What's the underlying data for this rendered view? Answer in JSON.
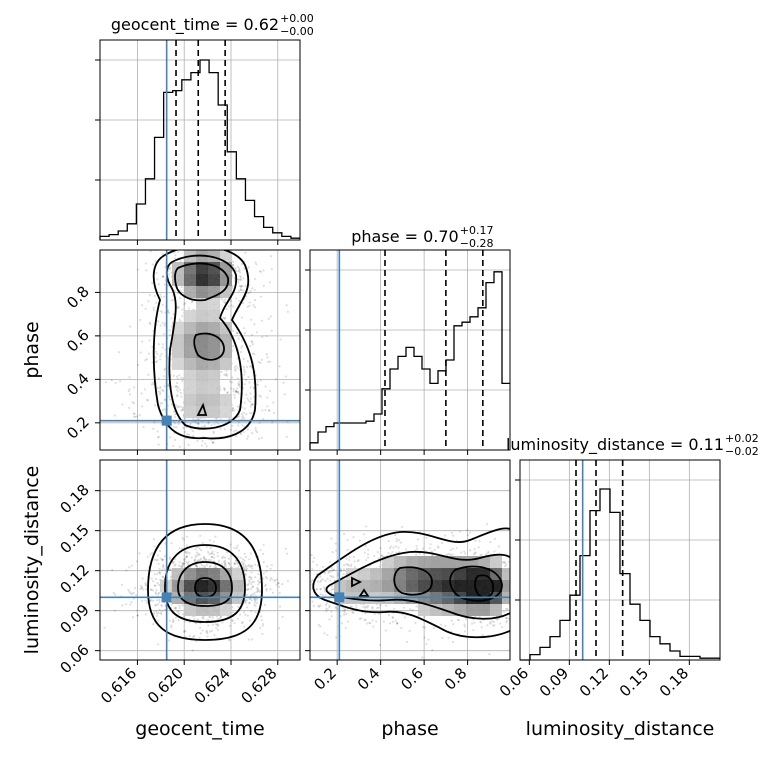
{
  "chart_data": {
    "type": "corner",
    "parameters": [
      "geocent_time",
      "phase",
      "luminosity_distance"
    ],
    "truths": {
      "geocent_time": 0.6185,
      "phase": 0.21,
      "luminosity_distance": 0.1
    },
    "truth_color": "#4682b4",
    "ranges": {
      "geocent_time": [
        0.6128,
        0.6299
      ],
      "phase": [
        0.075,
        0.995
      ],
      "luminosity_distance": [
        0.053,
        0.203
      ]
    },
    "titles": [
      {
        "param": "geocent_time",
        "prefix": "geocent_time = 0.62",
        "plus": "+0.00",
        "minus": "−0.00"
      },
      {
        "param": "phase",
        "prefix": "phase = 0.70",
        "plus": "+0.17",
        "minus": "−0.28"
      },
      {
        "param": "luminosity_distance",
        "prefix": "luminosity_distance = 0.11",
        "plus": "+0.02",
        "minus": "−0.02"
      }
    ],
    "xlabels": [
      "geocent_time",
      "phase",
      "luminosity_distance"
    ],
    "ylabels": [
      {
        "row": 1,
        "text": "phase"
      },
      {
        "row": 2,
        "text": "luminosity_distance"
      }
    ],
    "ticks": {
      "geocent_time": [
        "0.616",
        "0.620",
        "0.624",
        "0.628"
      ],
      "phase": [
        "0.2",
        "0.4",
        "0.6",
        "0.8"
      ],
      "luminosity_distance": [
        "0.06",
        "0.09",
        "0.12",
        "0.15",
        "0.18"
      ]
    },
    "quantiles": {
      "geocent_time": [
        0.6193,
        0.6212,
        0.6235
      ],
      "phase": [
        0.42,
        0.7,
        0.87
      ],
      "luminosity_distance": [
        0.095,
        0.11,
        0.13
      ]
    },
    "histograms": {
      "geocent_time": [
        0.02,
        0.03,
        0.05,
        0.09,
        0.2,
        0.34,
        0.57,
        0.82,
        0.83,
        0.89,
        0.93,
        1.0,
        0.93,
        0.75,
        0.49,
        0.34,
        0.22,
        0.13,
        0.07,
        0.04,
        0.02,
        0.01
      ],
      "phase": [
        0.04,
        0.1,
        0.13,
        0.15,
        0.15,
        0.15,
        0.15,
        0.16,
        0.2,
        0.34,
        0.45,
        0.52,
        0.57,
        0.52,
        0.45,
        0.37,
        0.44,
        0.5,
        0.69,
        0.71,
        0.74,
        0.79,
        0.93,
        0.99,
        0.37
      ],
      "luminosity_distance": [
        0.0,
        0.03,
        0.07,
        0.13,
        0.22,
        0.36,
        0.58,
        0.83,
        0.95,
        0.82,
        0.48,
        0.31,
        0.22,
        0.13,
        0.09,
        0.05,
        0.02,
        0.02,
        0.01,
        0.01
      ]
    }
  }
}
